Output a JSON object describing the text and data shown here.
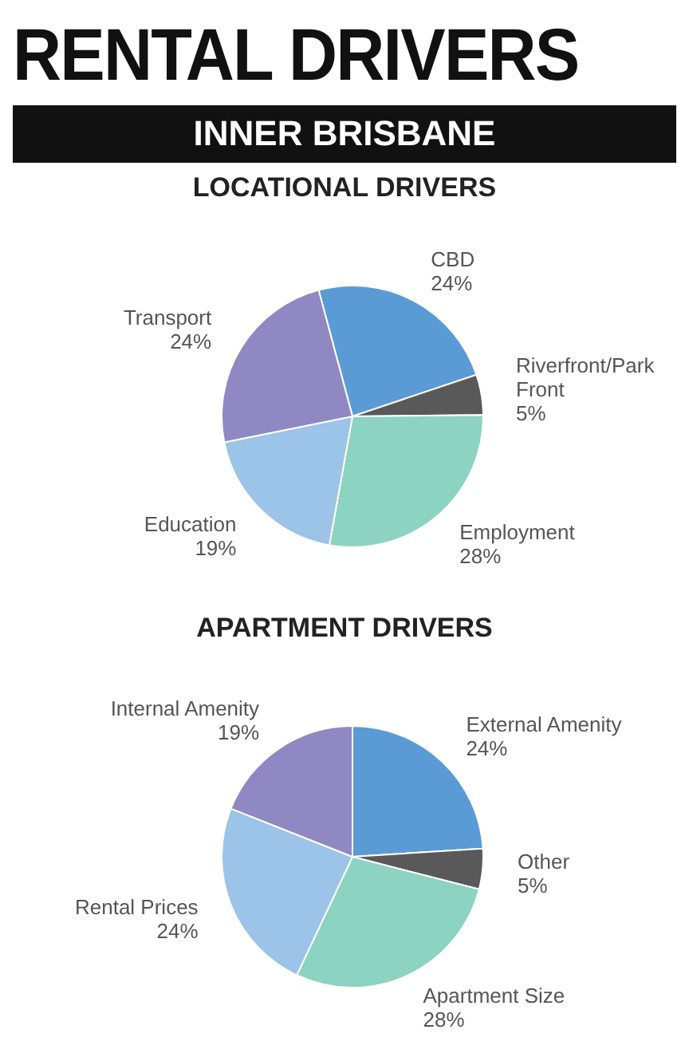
{
  "chart_data": [
    {
      "type": "other",
      "title": "RENTAL DRIVERS",
      "subtitle": "INNER BRISBANE"
    },
    {
      "type": "pie",
      "title": "LOCATIONAL DRIVERS",
      "categories": [
        "CBD",
        "Riverfront/Park Front",
        "Employment",
        "Education",
        "Transport"
      ],
      "values": [
        24,
        5,
        28,
        19,
        24
      ],
      "value_labels": [
        "24%",
        "5%",
        "28%",
        "19%",
        "24%"
      ],
      "colors": [
        "#5b9bd5",
        "#595959",
        "#8dd3c1",
        "#9cc3e8",
        "#8f88c2"
      ]
    },
    {
      "type": "pie",
      "title": "APARTMENT DRIVERS",
      "categories": [
        "External Amenity",
        "Other",
        "Apartment Size",
        "Rental Prices",
        "Internal Amenity"
      ],
      "values": [
        24,
        5,
        28,
        24,
        19
      ],
      "value_labels": [
        "24%",
        "5%",
        "28%",
        "24%",
        "19%"
      ],
      "colors": [
        "#5b9bd5",
        "#595959",
        "#8dd3c1",
        "#9cc3e8",
        "#8f88c2"
      ]
    }
  ]
}
